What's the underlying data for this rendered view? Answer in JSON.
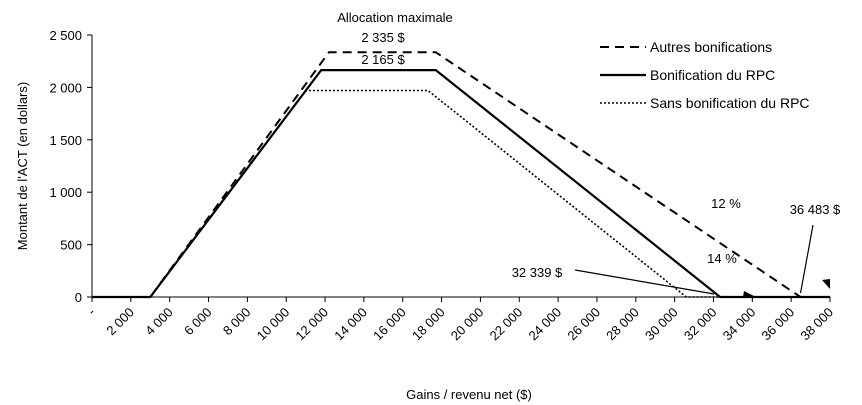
{
  "chart_data": {
    "type": "line",
    "title": "",
    "xlabel": "Gains / revenu net ($)",
    "ylabel": "Montant de l'ACT (en dollars)",
    "xlim": [
      0,
      38000
    ],
    "ylim": [
      0,
      2500
    ],
    "x_tick_labels": [
      "-",
      "2 000",
      "4 000",
      "6 000",
      "8 000",
      "10 000",
      "12 000",
      "14 000",
      "16 000",
      "18 000",
      "20 000",
      "22 000",
      "24 000",
      "26 000",
      "28 000",
      "30 000",
      "32 000",
      "34 000",
      "36 000",
      "38 000"
    ],
    "x_tick_values": [
      0,
      2000,
      4000,
      6000,
      8000,
      10000,
      12000,
      14000,
      16000,
      18000,
      20000,
      22000,
      24000,
      26000,
      28000,
      30000,
      32000,
      34000,
      36000,
      38000
    ],
    "y_tick_labels": [
      "0",
      "500",
      "1 000",
      "1 500",
      "2 000",
      "2 500"
    ],
    "y_tick_values": [
      0,
      500,
      1000,
      1500,
      2000,
      2500
    ],
    "grid": false,
    "legend_position": "top-right",
    "series": [
      {
        "name": "Autres bonifications",
        "style": "dashed",
        "x": [
          0,
          3000,
          12200,
          17700,
          36483,
          38000
        ],
        "y": [
          0,
          0,
          2335,
          2335,
          0,
          0
        ]
      },
      {
        "name": "Bonification du RPC",
        "style": "solid",
        "x": [
          0,
          3000,
          11800,
          17700,
          32339,
          38000
        ],
        "y": [
          0,
          0,
          2165,
          2165,
          0,
          0
        ]
      },
      {
        "name": "Sans bonification du RPC",
        "style": "dotted",
        "x": [
          0,
          3000,
          11000,
          17300,
          30600,
          31500,
          38000
        ],
        "y": [
          0,
          0,
          1970,
          1970,
          0,
          0,
          0
        ]
      }
    ],
    "annotations": {
      "top_label": "Allocation maximale",
      "max_other": "2 335 $",
      "max_rpc": "2 165 $",
      "rate_12": "12 %",
      "rate_14": "14 %",
      "value_36483": "36 483 $",
      "value_32339": "32 339 $"
    }
  }
}
